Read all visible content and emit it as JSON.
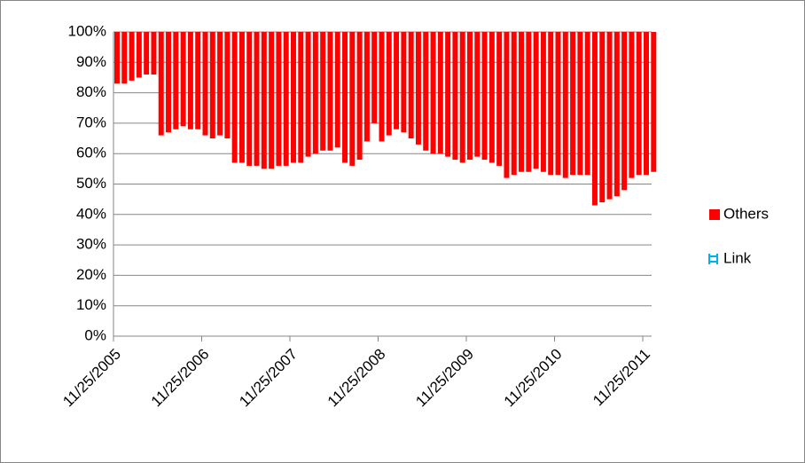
{
  "chart_data": {
    "type": "stacked_bar",
    "categories": [
      "11/25/2005",
      null,
      null,
      null,
      null,
      null,
      null,
      null,
      null,
      null,
      null,
      null,
      "11/25/2006",
      null,
      null,
      null,
      null,
      null,
      null,
      null,
      null,
      null,
      null,
      null,
      "11/25/2007",
      null,
      null,
      null,
      null,
      null,
      null,
      null,
      null,
      null,
      null,
      null,
      "11/25/2008",
      null,
      null,
      null,
      null,
      null,
      null,
      null,
      null,
      null,
      null,
      null,
      "11/25/2009",
      null,
      null,
      null,
      null,
      null,
      null,
      null,
      null,
      null,
      null,
      null,
      "11/25/2010",
      null,
      null,
      null,
      null,
      null,
      null,
      null,
      null,
      null,
      null,
      null,
      "11/25/2011",
      null
    ],
    "series": [
      {
        "name": "Link",
        "color": "#00b0f0",
        "values": [
          83,
          83,
          84,
          85,
          86,
          86,
          66,
          67,
          68,
          69,
          68,
          68,
          66,
          65,
          66,
          65,
          57,
          57,
          56,
          56,
          55,
          55,
          56,
          56,
          57,
          57,
          59,
          60,
          61,
          61,
          62,
          57,
          56,
          58,
          64,
          70,
          64,
          66,
          68,
          67,
          65,
          63,
          61,
          60,
          60,
          59,
          58,
          57,
          58,
          59,
          58,
          57,
          56,
          52,
          53,
          54,
          54,
          55,
          54,
          53,
          53,
          52,
          53,
          53,
          53,
          43,
          44,
          45,
          46,
          48,
          52,
          53,
          53,
          54
        ]
      },
      {
        "name": "Others",
        "color": "#ff0000",
        "values": [
          17,
          17,
          16,
          15,
          14,
          14,
          34,
          33,
          32,
          31,
          32,
          32,
          34,
          35,
          34,
          35,
          43,
          43,
          44,
          44,
          45,
          45,
          44,
          44,
          43,
          43,
          41,
          40,
          39,
          39,
          38,
          43,
          44,
          42,
          36,
          30,
          36,
          34,
          32,
          33,
          35,
          37,
          39,
          40,
          40,
          41,
          42,
          43,
          42,
          41,
          42,
          43,
          44,
          48,
          47,
          46,
          46,
          45,
          46,
          47,
          47,
          48,
          47,
          47,
          47,
          57,
          56,
          55,
          54,
          52,
          48,
          47,
          47,
          46
        ]
      }
    ],
    "ylim": [
      0,
      100
    ],
    "yticks": [
      {
        "value": 0,
        "label": "0%"
      },
      {
        "value": 10,
        "label": "10%"
      },
      {
        "value": 20,
        "label": "20%"
      },
      {
        "value": 30,
        "label": "30%"
      },
      {
        "value": 40,
        "label": "40%"
      },
      {
        "value": 50,
        "label": "50%"
      },
      {
        "value": 60,
        "label": "60%"
      },
      {
        "value": 70,
        "label": "70%"
      },
      {
        "value": 80,
        "label": "80%"
      },
      {
        "value": 90,
        "label": "90%"
      },
      {
        "value": 100,
        "label": "100%"
      }
    ],
    "grid": true,
    "legend": "right"
  }
}
